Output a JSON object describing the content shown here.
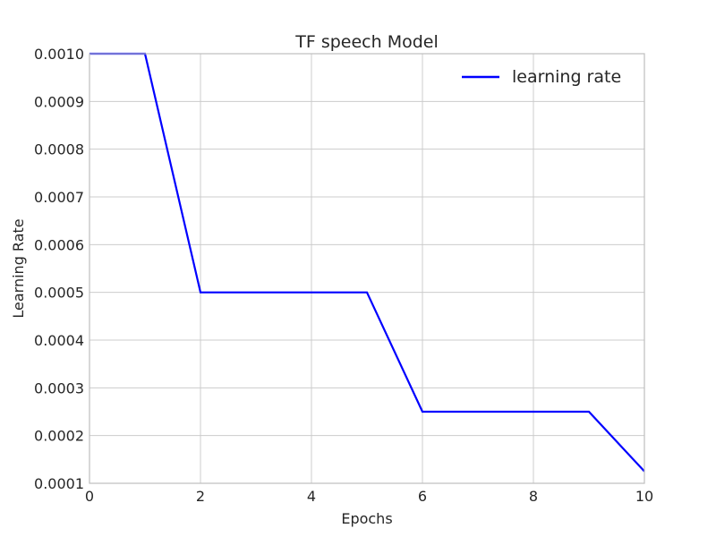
{
  "chart_data": {
    "type": "line",
    "title": "TF speech Model",
    "xlabel": "Epochs",
    "ylabel": "Learning Rate",
    "xlim": [
      0,
      10
    ],
    "ylim": [
      0.0001,
      0.001
    ],
    "xticks": [
      0,
      2,
      4,
      6,
      8,
      10
    ],
    "xtick_labels": [
      "0",
      "2",
      "4",
      "6",
      "8",
      "10"
    ],
    "yticks": [
      0.0001,
      0.0002,
      0.0003,
      0.0004,
      0.0005,
      0.0006,
      0.0007,
      0.0008,
      0.0009,
      0.001
    ],
    "ytick_labels": [
      "0.0001",
      "0.0002",
      "0.0003",
      "0.0004",
      "0.0005",
      "0.0006",
      "0.0007",
      "0.0008",
      "0.0009",
      "0.0010"
    ],
    "grid": true,
    "legend_position": "top-right",
    "series": [
      {
        "name": "learning rate",
        "color": "#0000ff",
        "x": [
          0,
          1,
          2,
          3,
          4,
          5,
          6,
          7,
          8,
          9,
          10
        ],
        "y": [
          0.001,
          0.001,
          0.0005,
          0.0005,
          0.0005,
          0.0005,
          0.00025,
          0.00025,
          0.00025,
          0.00025,
          0.000125
        ]
      }
    ]
  }
}
